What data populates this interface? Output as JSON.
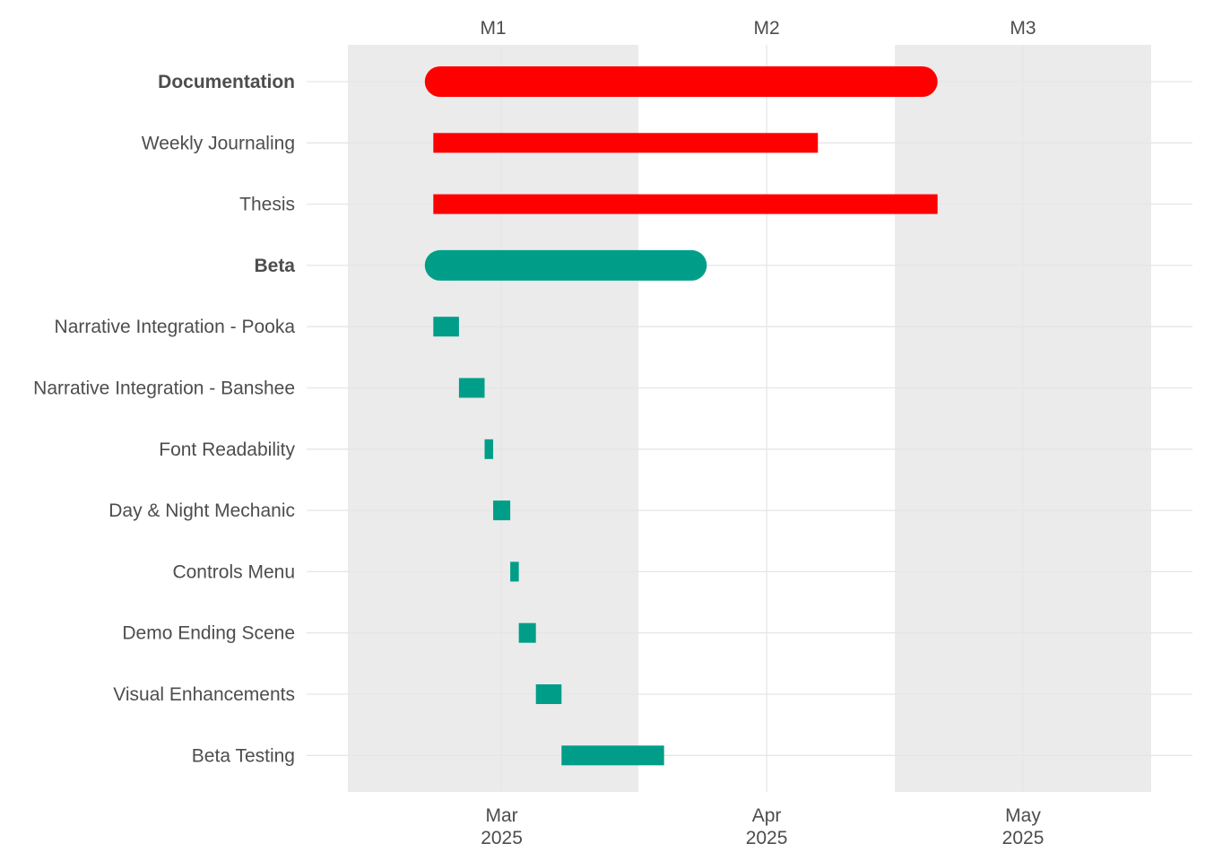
{
  "chart_data": {
    "type": "gantt",
    "title": "",
    "xlabel": "",
    "ylabel": "",
    "x_range": [
      "2025-02-11",
      "2025-05-16"
    ],
    "x_ticks": [
      {
        "date": "2025-03-01",
        "label_month": "Mar",
        "label_year": "2025"
      },
      {
        "date": "2025-04-01",
        "label_month": "Apr",
        "label_year": "2025"
      },
      {
        "date": "2025-05-01",
        "label_month": "May",
        "label_year": "2025"
      }
    ],
    "month_bands": [
      {
        "label": "M1",
        "start": "2025-02-11",
        "end": "2025-03-17",
        "shaded": true
      },
      {
        "label": "M2",
        "start": "2025-03-17",
        "end": "2025-04-16",
        "shaded": false
      },
      {
        "label": "M3",
        "start": "2025-04-16",
        "end": "2025-05-16",
        "shaded": true
      }
    ],
    "colors": {
      "Documentation": "#ff0000",
      "Beta": "#009e89",
      "band": "#ebebeb",
      "grid": "#e6e6e6",
      "text": "#4d4d4d"
    },
    "tasks": [
      {
        "name": "Documentation",
        "group": "Documentation",
        "is_group": true,
        "start": "2025-02-20",
        "end": "2025-04-21"
      },
      {
        "name": "Weekly Journaling",
        "group": "Documentation",
        "is_group": false,
        "start": "2025-02-21",
        "end": "2025-04-07"
      },
      {
        "name": "Thesis",
        "group": "Documentation",
        "is_group": false,
        "start": "2025-02-21",
        "end": "2025-04-21"
      },
      {
        "name": "Beta",
        "group": "Beta",
        "is_group": true,
        "start": "2025-02-20",
        "end": "2025-03-25"
      },
      {
        "name": "Narrative Integration - Pooka",
        "group": "Beta",
        "is_group": false,
        "start": "2025-02-21",
        "end": "2025-02-24"
      },
      {
        "name": "Narrative Integration - Banshee",
        "group": "Beta",
        "is_group": false,
        "start": "2025-02-24",
        "end": "2025-02-27"
      },
      {
        "name": "Font Readability",
        "group": "Beta",
        "is_group": false,
        "start": "2025-02-27",
        "end": "2025-02-28"
      },
      {
        "name": "Day & Night Mechanic",
        "group": "Beta",
        "is_group": false,
        "start": "2025-02-28",
        "end": "2025-03-02"
      },
      {
        "name": "Controls Menu",
        "group": "Beta",
        "is_group": false,
        "start": "2025-03-02",
        "end": "2025-03-03"
      },
      {
        "name": "Demo Ending Scene",
        "group": "Beta",
        "is_group": false,
        "start": "2025-03-03",
        "end": "2025-03-05"
      },
      {
        "name": "Visual Enhancements",
        "group": "Beta",
        "is_group": false,
        "start": "2025-03-05",
        "end": "2025-03-08"
      },
      {
        "name": "Beta Testing",
        "group": "Beta",
        "is_group": false,
        "start": "2025-03-08",
        "end": "2025-03-20"
      }
    ]
  }
}
